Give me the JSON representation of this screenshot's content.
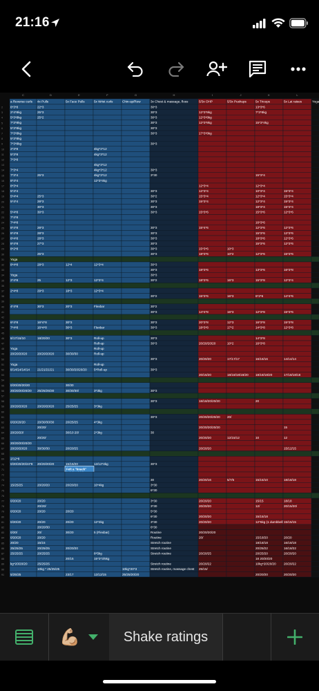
{
  "status_bar": {
    "time": "21:16"
  },
  "toolbar": {
    "back": "back-chevron",
    "undo": "undo-arrow",
    "redo": "redo-arrow",
    "share": "add-person",
    "comment": "comment-box",
    "more": "more-dots"
  },
  "sheet": {
    "column_letters": [
      "C",
      "D",
      "E",
      "F",
      "G",
      "H",
      "I",
      "J",
      "K",
      "L"
    ],
    "headers": {
      "C": "a Reverse curls",
      "D": "4x Pulls",
      "E": "5x Face Pulls",
      "F": "5x Wrist curls",
      "G": "Chin-up/Row",
      "H": "3x Chest & massage, floss",
      "I": "5/3x OHP",
      "J": "5/3x Pushups",
      "K": "5x Triceps",
      "L": "5x Lat raises",
      "M": "Yoga"
    },
    "rows": [
      {
        "C": "6*3*8",
        "D": "22*3",
        "H": "30*3",
        "K": "13*3*6"
      },
      {
        "C": "2*4*8kg",
        "D": "25*3",
        "H": "30*3",
        "I": "12*3*8kg",
        "K": "7*3*8kg"
      },
      {
        "C": "5*3*8kg",
        "D": "25*2",
        "H": "30*3",
        "I": "12*3*8kg"
      },
      {
        "C": "7*3*8kg",
        "H": "30*3",
        "I": "12*3*8kg",
        "K": "15*3*4kg"
      },
      {
        "C": "5*3*8kg",
        "H": "30*3"
      },
      {
        "C": "7*3*8kg",
        "H": "30*3",
        "I": "17*3*8kg"
      },
      {
        "C": "5*3*8kg"
      },
      {
        "C": "7*3*8kg",
        "H": "30*3"
      },
      {
        "C": "2*3*8",
        "F": "4kg*2*12"
      },
      {
        "C": "5*3*8",
        "F": "4kg*3*12"
      },
      {
        "C": "7*3*8"
      },
      {
        "F": "4kg*3*12"
      },
      {
        "C": "7*3*4",
        "F": "4kg*3*12",
        "H": "30*3"
      },
      {
        "C": "7*3*4",
        "D": "25*3",
        "F": "4kg*3*12",
        "H": "3*30",
        "K": "15*3*4"
      },
      {
        "C": "8*4*4",
        "F": "12*3*4kg"
      },
      {
        "C": "8*3*4",
        "I": "12*3*4",
        "K": "12*3*4"
      },
      {
        "C": "5*4*4",
        "H": "30*3",
        "I": "12*3*4",
        "K": "10*3*4",
        "L": "15*3*4"
      },
      {
        "C": "5*4*4",
        "D": "25*3",
        "H": "30*2",
        "I": "15*3*4",
        "K": "12*3*4",
        "L": "15*3*4"
      },
      {
        "C": "5*4*4",
        "D": "28*3",
        "H": "30*3",
        "I": "15*3*4",
        "K": "12*3*4",
        "L": "15*3*4"
      },
      {
        "D": "30*3",
        "H": "30*3",
        "K": "18*3*4",
        "L": "15*3*4"
      },
      {
        "C": "5*4*8",
        "D": "30*3",
        "H": "30*3",
        "I": "15*3*6",
        "K": "15*3*6",
        "L": "12*3*6"
      },
      {
        "C": "7*4*8"
      },
      {
        "C": "7*4*8",
        "K": "16*3*6"
      },
      {
        "C": "8*4*8",
        "D": "28*3",
        "H": "30*3",
        "I": "15*4*6",
        "K": "12*3*6",
        "L": "12*3*6"
      },
      {
        "C": "8*4*8",
        "D": "28*3",
        "H": "30*3",
        "K": "15*3*6",
        "L": "12*3*6"
      },
      {
        "C": "8*4*8",
        "D": "28*3",
        "H": "30*3",
        "K": "18*3*6",
        "L": "12*3*6"
      },
      {
        "C": "8*4*8",
        "D": "27*3",
        "H": "30*3",
        "K": "15*3*6",
        "L": "12*3*6"
      },
      {
        "C": "8*2*8",
        "H": "30*3",
        "I": "15*3*6",
        "J": "10*3"
      },
      {
        "D": "25*3",
        "H": "30*3",
        "I": "18*3*6",
        "J": "10*2",
        "K": "12*3*6",
        "L": "15*3*6"
      },
      {
        "C": "Yoga",
        "band": true
      },
      {
        "C": "8*4*8",
        "D": "28*3",
        "E": "12*4",
        "F": "12*3*4",
        "H": "30*3"
      },
      {
        "H": "30*3",
        "I": "18*3*6",
        "K": "13*3*6",
        "L": "16*3*8"
      },
      {
        "C": "Yoga",
        "H": "30*3"
      },
      {
        "C": "2*4*8",
        "D": "25",
        "E": "12*3",
        "F": "12*3*4",
        "H": "30*2",
        "I": "18*3*6",
        "J": "16*3",
        "K": "15*3*8",
        "L": "12*3*4"
      },
      {
        "band": true
      },
      {
        "C": "2*4*8",
        "D": "29*3",
        "E": "18*3",
        "F": "12*3*4"
      },
      {
        "H": "30*2",
        "I": "15*3*6",
        "J": "16*3",
        "K": "6*2*6",
        "L": "14*4*6"
      },
      {
        "band": true
      },
      {
        "C": "4*4*8",
        "D": "30*3",
        "E": "20*3",
        "F": "Flexbar",
        "H": "30*2"
      },
      {
        "H": "30*3",
        "I": "14*4*8",
        "J": "16*3",
        "K": "12*3*8",
        "L": "15*3*6"
      },
      {
        "band": true
      },
      {
        "C": "6*4*8",
        "D": "16*4*8",
        "E": "30*3",
        "H": "30*3",
        "I": "20*3*8",
        "J": "12*3",
        "K": "16*3*8",
        "L": "15*3*8"
      },
      {
        "C": "7*4*8",
        "D": "16*4*8",
        "E": "30*3",
        "F": "Flexbar",
        "H": "30*3",
        "I": "18*3*8",
        "J": "17*2",
        "K": "14*3*8",
        "L": "12*3*8"
      },
      {
        "band": true
      },
      {
        "C": "8/17/16/10",
        "D": "18/20/20",
        "E": "30*3",
        "F": "Roll-up",
        "H": "30*3",
        "K": "14*3*8"
      },
      {
        "F": "Roll-up",
        "H": "30*3",
        "I": "20/20/20/20",
        "J": "10*2",
        "K": "16*3*8"
      },
      {
        "C": "Yoga",
        "F": "Roll-up"
      },
      {
        "C": "20/20/20/20",
        "D": "20/20/20/20",
        "E": "30/30/30",
        "F": "Roll-up"
      },
      {
        "H": "30*3",
        "I": "20/20/20",
        "J": "17/17/17",
        "K": "16/16/16",
        "L": "14/14/14"
      },
      {
        "C": "Yoga",
        "F": "Roll-up"
      },
      {
        "C": "8/14/14/14/14",
        "D": "21/21/21/21",
        "E": "30/30/20/20/20",
        "F": "5*Roll-up",
        "H": "30*3"
      },
      {
        "I": "20/16/20",
        "J": "18/18/18/18/20",
        "K": "18/18/18/20",
        "L": "17/18/18/18"
      },
      {
        "band": true
      },
      {
        "C": "0/20/20/20/20",
        "E": "30/30"
      },
      {
        "C": "20/20/20/20/20",
        "D": "25/25/25/30",
        "E": "30/30/30/",
        "F": "3*3kg",
        "H": "30*3"
      },
      {
        "band": true
      },
      {
        "H": "30*3",
        "I": "18/18/20/20/20",
        "K": "20"
      },
      {
        "C": "20/20/20/20",
        "D": "20/20/20/20",
        "E": "25/25/25",
        "F": "3*3kg"
      },
      {
        "band": true
      },
      {
        "H": "30*3",
        "I": "20/20/20/20/20",
        "J": "20/"
      },
      {
        "C": "0/20/20/20",
        "D": "20/30/30/30",
        "E": "20/25/25",
        "F": "4*3kg"
      },
      {
        "D": "20/20/",
        "I": "20/20/20/20/20",
        "L": "15"
      },
      {
        "C": "20/20/20/",
        "E": "30/10 20/",
        "F": "2*3kg",
        "H": "30"
      },
      {
        "D": "20/20/",
        "I": "20/20/20",
        "J": "12/15/12",
        "K": "10",
        "L": "12"
      },
      {
        "C": "20/20/20/20/20"
      },
      {
        "C": "20/20/20/20",
        "D": "30/30/30",
        "E": "20/20/25",
        "I": "20/20/20",
        "L": "15/12/15"
      },
      {
        "band": true
      },
      {
        "C": "2/12*8"
      },
      {
        "C": "0/20/20/20/24*8",
        "D": "20/20/20/20",
        "E": "15/15/20",
        "F": "12/12*4kg",
        "H": "30*3"
      },
      {
        "note": true
      },
      {},
      {
        "H": "30",
        "I": "20/20/16",
        "J": "5/7/5",
        "K": "15/15/10",
        "L": "18/18/18"
      },
      {
        "C": "15/25/25",
        "D": "20/20/20",
        "E": "20/20/20",
        "F": "10*4kg",
        "H": "3*30"
      },
      {
        "H": "6*30"
      },
      {
        "band": true
      },
      {
        "C": "0/20/20",
        "D": "20/20",
        "H": "3*30",
        "I": "20/20/20",
        "K": "15/15",
        "L": "18/18"
      },
      {
        "D": "20/20/",
        "H": "3*30",
        "I": "20/20/20",
        "K": "12/",
        "L": "20/15/20/"
      },
      {
        "C": "0/20/20",
        "D": "20/20",
        "E": "20/20",
        "H": "5*30"
      },
      {
        "H": "6*30",
        "I": "20/20/20",
        "K": "15/15/18"
      },
      {
        "C": "0/20/20",
        "D": "20/20",
        "E": "20/20",
        "F": "12*2kg",
        "H": "3*30",
        "I": "20/20/20",
        "K": "12*6kg (1 dumbbell)",
        "L": "15/15/15"
      },
      {
        "D": "20/20/30",
        "H": "6*30"
      },
      {
        "C": "0/20/",
        "D": "20/",
        "E": "30/20",
        "F": "5 (Flexbar)",
        "H": "Routine",
        "I": "20/20/20/20"
      },
      {
        "C": "0/20/20",
        "D": "20/20",
        "H": "Routine",
        "I": "20/",
        "K": "15/18/20",
        "L": "20/20"
      },
      {
        "C": "20/20",
        "D": "15/15",
        "H": "Stretch routine",
        "K": "18/18/18",
        "L": "16/18/18"
      },
      {
        "C": "25/25/25",
        "D": "20/25/25",
        "E": "20/20/20",
        "H": "Stretch routine",
        "K": "20/25/22",
        "L": "16/18/22"
      },
      {
        "C": "25/25/25",
        "D": "20/25/25",
        "F": "8*5kg",
        "H": "Stretch routine",
        "I": "20/20/25",
        "K": "20/25/20",
        "L": "20/20/20"
      },
      {
        "E": "20/15",
        "F": "15*3*3/5kg",
        "K": "18 20/20/20"
      },
      {
        "C": "kg*20/20/20",
        "D": "25/25/25",
        "H": "Stretch routine",
        "I": "20/20/22",
        "K": "10kg*20/20/20",
        "L": "20/20/22"
      },
      {
        "D": "10kg * 25/25/25",
        "G": "10kg*20*3",
        "H": "Stretch routine, massage chest",
        "I": "25/15/"
      },
      {
        "C": "5/25/25",
        "E": "23/17",
        "F": "12/12/15",
        "G": "25/25/20/20",
        "K": "20/20/20",
        "L": "20/20/20"
      }
    ],
    "note_text": [
      "Felt a \"knack\"",
      "in left-middle",
      "back. All pain",
      "was gone",
      "suddenly!"
    ]
  },
  "bottom_bar": {
    "menu_icon": "hamburger-grid-icon",
    "sheet_emoji": "💪🏼",
    "sheet_name": "Shake ratings",
    "add_icon": "plus-icon"
  },
  "colors": {
    "blue": "#1f4f7c",
    "red": "#7a1418",
    "dark": "#14263a",
    "green_band": "#1c3620",
    "darkred": "#4a1012",
    "grid": "#0d1a26"
  }
}
